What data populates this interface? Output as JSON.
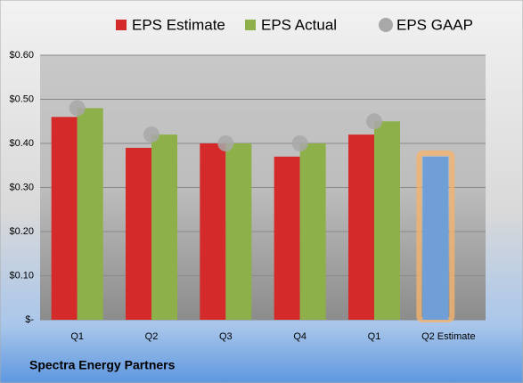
{
  "chart_data": {
    "type": "bar",
    "title": "Spectra Energy Partners",
    "categories": [
      "Q1",
      "Q2",
      "Q3",
      "Q4",
      "Q1",
      "Q2 Estimate"
    ],
    "series": [
      {
        "name": "EPS Estimate",
        "color": "#d42a2a",
        "values": [
          0.46,
          0.39,
          0.4,
          0.37,
          0.42,
          0.37
        ]
      },
      {
        "name": "EPS Actual",
        "color": "#8db04a",
        "values": [
          0.48,
          0.42,
          0.4,
          0.4,
          0.45,
          null
        ]
      },
      {
        "name": "EPS GAAP",
        "color": "#a8a8a8",
        "marker": "circle",
        "values": [
          0.48,
          0.42,
          0.4,
          0.4,
          0.45,
          null
        ]
      }
    ],
    "highlight": {
      "series": 0,
      "index": 5,
      "color": "#6f9fd6",
      "glow": "#f3b36e"
    },
    "ylim": [
      0,
      0.6
    ],
    "yticks": [
      {
        "value": 0,
        "label": "$-"
      },
      {
        "value": 0.1,
        "label": "$0.10"
      },
      {
        "value": 0.2,
        "label": "$0.20"
      },
      {
        "value": 0.3,
        "label": "$0.30"
      },
      {
        "value": 0.4,
        "label": "$0.40"
      },
      {
        "value": 0.5,
        "label": "$0.50"
      },
      {
        "value": 0.6,
        "label": "$0.60"
      }
    ],
    "grid": true
  }
}
